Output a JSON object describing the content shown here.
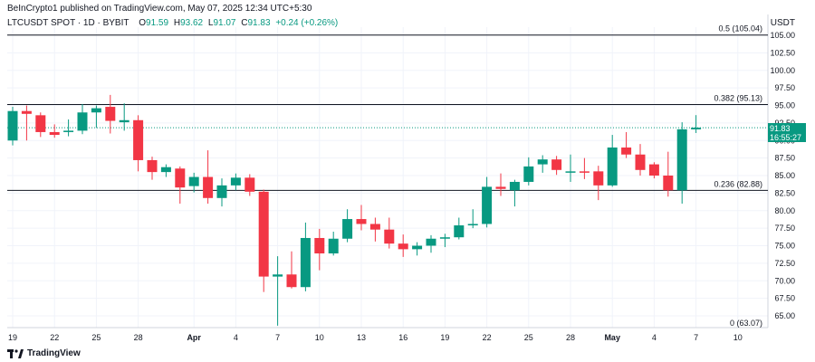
{
  "header": {
    "published": "BeInCrypto1 published on TradingView.com, May 07, 2025 12:34 UTC+5:30",
    "symbol": "LTCUSDT SPOT · 1D · BYBIT",
    "open_label": "O",
    "open": "91.59",
    "high_label": "H",
    "high": "93.62",
    "low_label": "L",
    "low": "91.07",
    "close_label": "C",
    "close": "91.83",
    "change": "+0.24 (+0.26%)"
  },
  "currency": "USDT",
  "price_badge": {
    "price": "91.83",
    "countdown": "16:55:27"
  },
  "footer": {
    "brand": "TradingView"
  },
  "colors": {
    "up": "#089981",
    "down": "#f23645",
    "line": "#131722",
    "grid": "#f0f3fa"
  },
  "chart_data": {
    "type": "candlestick",
    "ylim": [
      63.0,
      106.5
    ],
    "y_ticks": [
      "65.00",
      "67.50",
      "70.00",
      "72.50",
      "75.00",
      "77.50",
      "80.00",
      "82.50",
      "85.00",
      "87.50",
      "90.00",
      "92.50",
      "95.00",
      "97.50",
      "100.00",
      "102.50",
      "105.00"
    ],
    "x_ticks": [
      {
        "label": "19",
        "i": 0
      },
      {
        "label": "22",
        "i": 3
      },
      {
        "label": "25",
        "i": 6
      },
      {
        "label": "28",
        "i": 9
      },
      {
        "label": "Apr",
        "i": 13
      },
      {
        "label": "4",
        "i": 16
      },
      {
        "label": "7",
        "i": 19
      },
      {
        "label": "10",
        "i": 22
      },
      {
        "label": "13",
        "i": 25
      },
      {
        "label": "16",
        "i": 28
      },
      {
        "label": "19",
        "i": 31
      },
      {
        "label": "22",
        "i": 34
      },
      {
        "label": "25",
        "i": 37
      },
      {
        "label": "28",
        "i": 40
      },
      {
        "label": "May",
        "i": 43
      },
      {
        "label": "4",
        "i": 46
      },
      {
        "label": "7",
        "i": 49
      },
      {
        "label": "10",
        "i": 52
      }
    ],
    "fib_levels": [
      {
        "label": "0.5 (105.04)",
        "value": 105.04
      },
      {
        "label": "0.382 (95.13)",
        "value": 95.13
      },
      {
        "label": "0.236 (82.88)",
        "value": 82.88
      },
      {
        "label": "0 (63.07)",
        "value": 63.07
      }
    ],
    "current_price": 91.83,
    "candles": [
      {
        "date": "Mar 19",
        "o": 90.0,
        "h": 94.8,
        "l": 89.3,
        "c": 94.2
      },
      {
        "date": "Mar 20",
        "o": 94.2,
        "h": 95.0,
        "l": 90.0,
        "c": 93.8
      },
      {
        "date": "Mar 21",
        "o": 93.6,
        "h": 94.0,
        "l": 90.5,
        "c": 91.2
      },
      {
        "date": "Mar 22",
        "o": 91.2,
        "h": 92.3,
        "l": 90.4,
        "c": 90.8
      },
      {
        "date": "Mar 23",
        "o": 91.2,
        "h": 93.0,
        "l": 90.6,
        "c": 91.4
      },
      {
        "date": "Mar 24",
        "o": 91.4,
        "h": 95.2,
        "l": 90.9,
        "c": 94.0
      },
      {
        "date": "Mar 25",
        "o": 94.0,
        "h": 95.0,
        "l": 91.8,
        "c": 94.6
      },
      {
        "date": "Mar 26",
        "o": 94.8,
        "h": 96.5,
        "l": 91.0,
        "c": 92.8
      },
      {
        "date": "Mar 27",
        "o": 92.6,
        "h": 95.3,
        "l": 91.4,
        "c": 92.9
      },
      {
        "date": "Mar 28",
        "o": 92.9,
        "h": 93.6,
        "l": 85.6,
        "c": 87.2
      },
      {
        "date": "Mar 29",
        "o": 87.2,
        "h": 87.7,
        "l": 84.4,
        "c": 85.5
      },
      {
        "date": "Mar 30",
        "o": 85.5,
        "h": 86.6,
        "l": 84.8,
        "c": 86.2
      },
      {
        "date": "Mar 31",
        "o": 86.0,
        "h": 86.3,
        "l": 81.0,
        "c": 83.3
      },
      {
        "date": "Apr 1",
        "o": 83.5,
        "h": 85.4,
        "l": 82.6,
        "c": 84.8
      },
      {
        "date": "Apr 2",
        "o": 84.8,
        "h": 88.6,
        "l": 81.0,
        "c": 81.8
      },
      {
        "date": "Apr 3",
        "o": 81.8,
        "h": 84.6,
        "l": 80.6,
        "c": 83.6
      },
      {
        "date": "Apr 4",
        "o": 83.6,
        "h": 85.3,
        "l": 82.9,
        "c": 84.7
      },
      {
        "date": "Apr 5",
        "o": 84.7,
        "h": 85.2,
        "l": 82.1,
        "c": 82.7
      },
      {
        "date": "Apr 6",
        "o": 82.7,
        "h": 83.0,
        "l": 68.4,
        "c": 70.6
      },
      {
        "date": "Apr 7",
        "o": 70.6,
        "h": 73.5,
        "l": 63.6,
        "c": 70.9
      },
      {
        "date": "Apr 8",
        "o": 70.9,
        "h": 74.2,
        "l": 68.9,
        "c": 69.1
      },
      {
        "date": "Apr 9",
        "o": 69.1,
        "h": 78.3,
        "l": 68.5,
        "c": 76.1
      },
      {
        "date": "Apr 10",
        "o": 76.1,
        "h": 77.4,
        "l": 71.5,
        "c": 73.9
      },
      {
        "date": "Apr 11",
        "o": 73.9,
        "h": 77.0,
        "l": 73.6,
        "c": 76.0
      },
      {
        "date": "Apr 12",
        "o": 76.0,
        "h": 80.2,
        "l": 75.5,
        "c": 78.8
      },
      {
        "date": "Apr 13",
        "o": 78.8,
        "h": 80.8,
        "l": 77.2,
        "c": 78.1
      },
      {
        "date": "Apr 14",
        "o": 78.1,
        "h": 79.0,
        "l": 75.6,
        "c": 77.3
      },
      {
        "date": "Apr 15",
        "o": 77.3,
        "h": 79.0,
        "l": 74.6,
        "c": 75.3
      },
      {
        "date": "Apr 16",
        "o": 75.3,
        "h": 76.6,
        "l": 73.4,
        "c": 74.5
      },
      {
        "date": "Apr 17",
        "o": 74.5,
        "h": 75.5,
        "l": 73.6,
        "c": 75.0
      },
      {
        "date": "Apr 18",
        "o": 75.0,
        "h": 76.5,
        "l": 74.0,
        "c": 76.0
      },
      {
        "date": "Apr 19",
        "o": 76.0,
        "h": 76.7,
        "l": 74.8,
        "c": 76.2
      },
      {
        "date": "Apr 20",
        "o": 76.2,
        "h": 79.0,
        "l": 75.9,
        "c": 77.9
      },
      {
        "date": "Apr 21",
        "o": 77.9,
        "h": 80.2,
        "l": 77.5,
        "c": 78.1
      },
      {
        "date": "Apr 22",
        "o": 78.1,
        "h": 84.8,
        "l": 77.6,
        "c": 83.4
      },
      {
        "date": "Apr 23",
        "o": 83.4,
        "h": 85.3,
        "l": 82.1,
        "c": 83.1
      },
      {
        "date": "Apr 24",
        "o": 82.9,
        "h": 84.4,
        "l": 80.6,
        "c": 84.1
      },
      {
        "date": "Apr 25",
        "o": 84.1,
        "h": 87.6,
        "l": 83.6,
        "c": 86.3
      },
      {
        "date": "Apr 26",
        "o": 86.6,
        "h": 87.9,
        "l": 85.4,
        "c": 87.3
      },
      {
        "date": "Apr 27",
        "o": 87.3,
        "h": 87.8,
        "l": 85.1,
        "c": 85.8
      },
      {
        "date": "Apr 28",
        "o": 85.5,
        "h": 88.0,
        "l": 84.1,
        "c": 85.6
      },
      {
        "date": "Apr 29",
        "o": 85.6,
        "h": 87.5,
        "l": 84.5,
        "c": 85.5
      },
      {
        "date": "Apr 30",
        "o": 85.6,
        "h": 86.4,
        "l": 81.5,
        "c": 83.6
      },
      {
        "date": "May 1",
        "o": 83.6,
        "h": 90.8,
        "l": 83.4,
        "c": 89.0
      },
      {
        "date": "May 2",
        "o": 89.0,
        "h": 91.2,
        "l": 87.5,
        "c": 88.0
      },
      {
        "date": "May 3",
        "o": 88.0,
        "h": 89.5,
        "l": 85.0,
        "c": 85.8
      },
      {
        "date": "May 4",
        "o": 86.6,
        "h": 86.9,
        "l": 84.6,
        "c": 85.0
      },
      {
        "date": "May 5",
        "o": 85.0,
        "h": 88.4,
        "l": 82.0,
        "c": 82.9
      },
      {
        "date": "May 6",
        "o": 82.9,
        "h": 92.6,
        "l": 81.0,
        "c": 91.6
      },
      {
        "date": "May 7",
        "o": 91.59,
        "h": 93.62,
        "l": 91.07,
        "c": 91.83
      }
    ]
  }
}
